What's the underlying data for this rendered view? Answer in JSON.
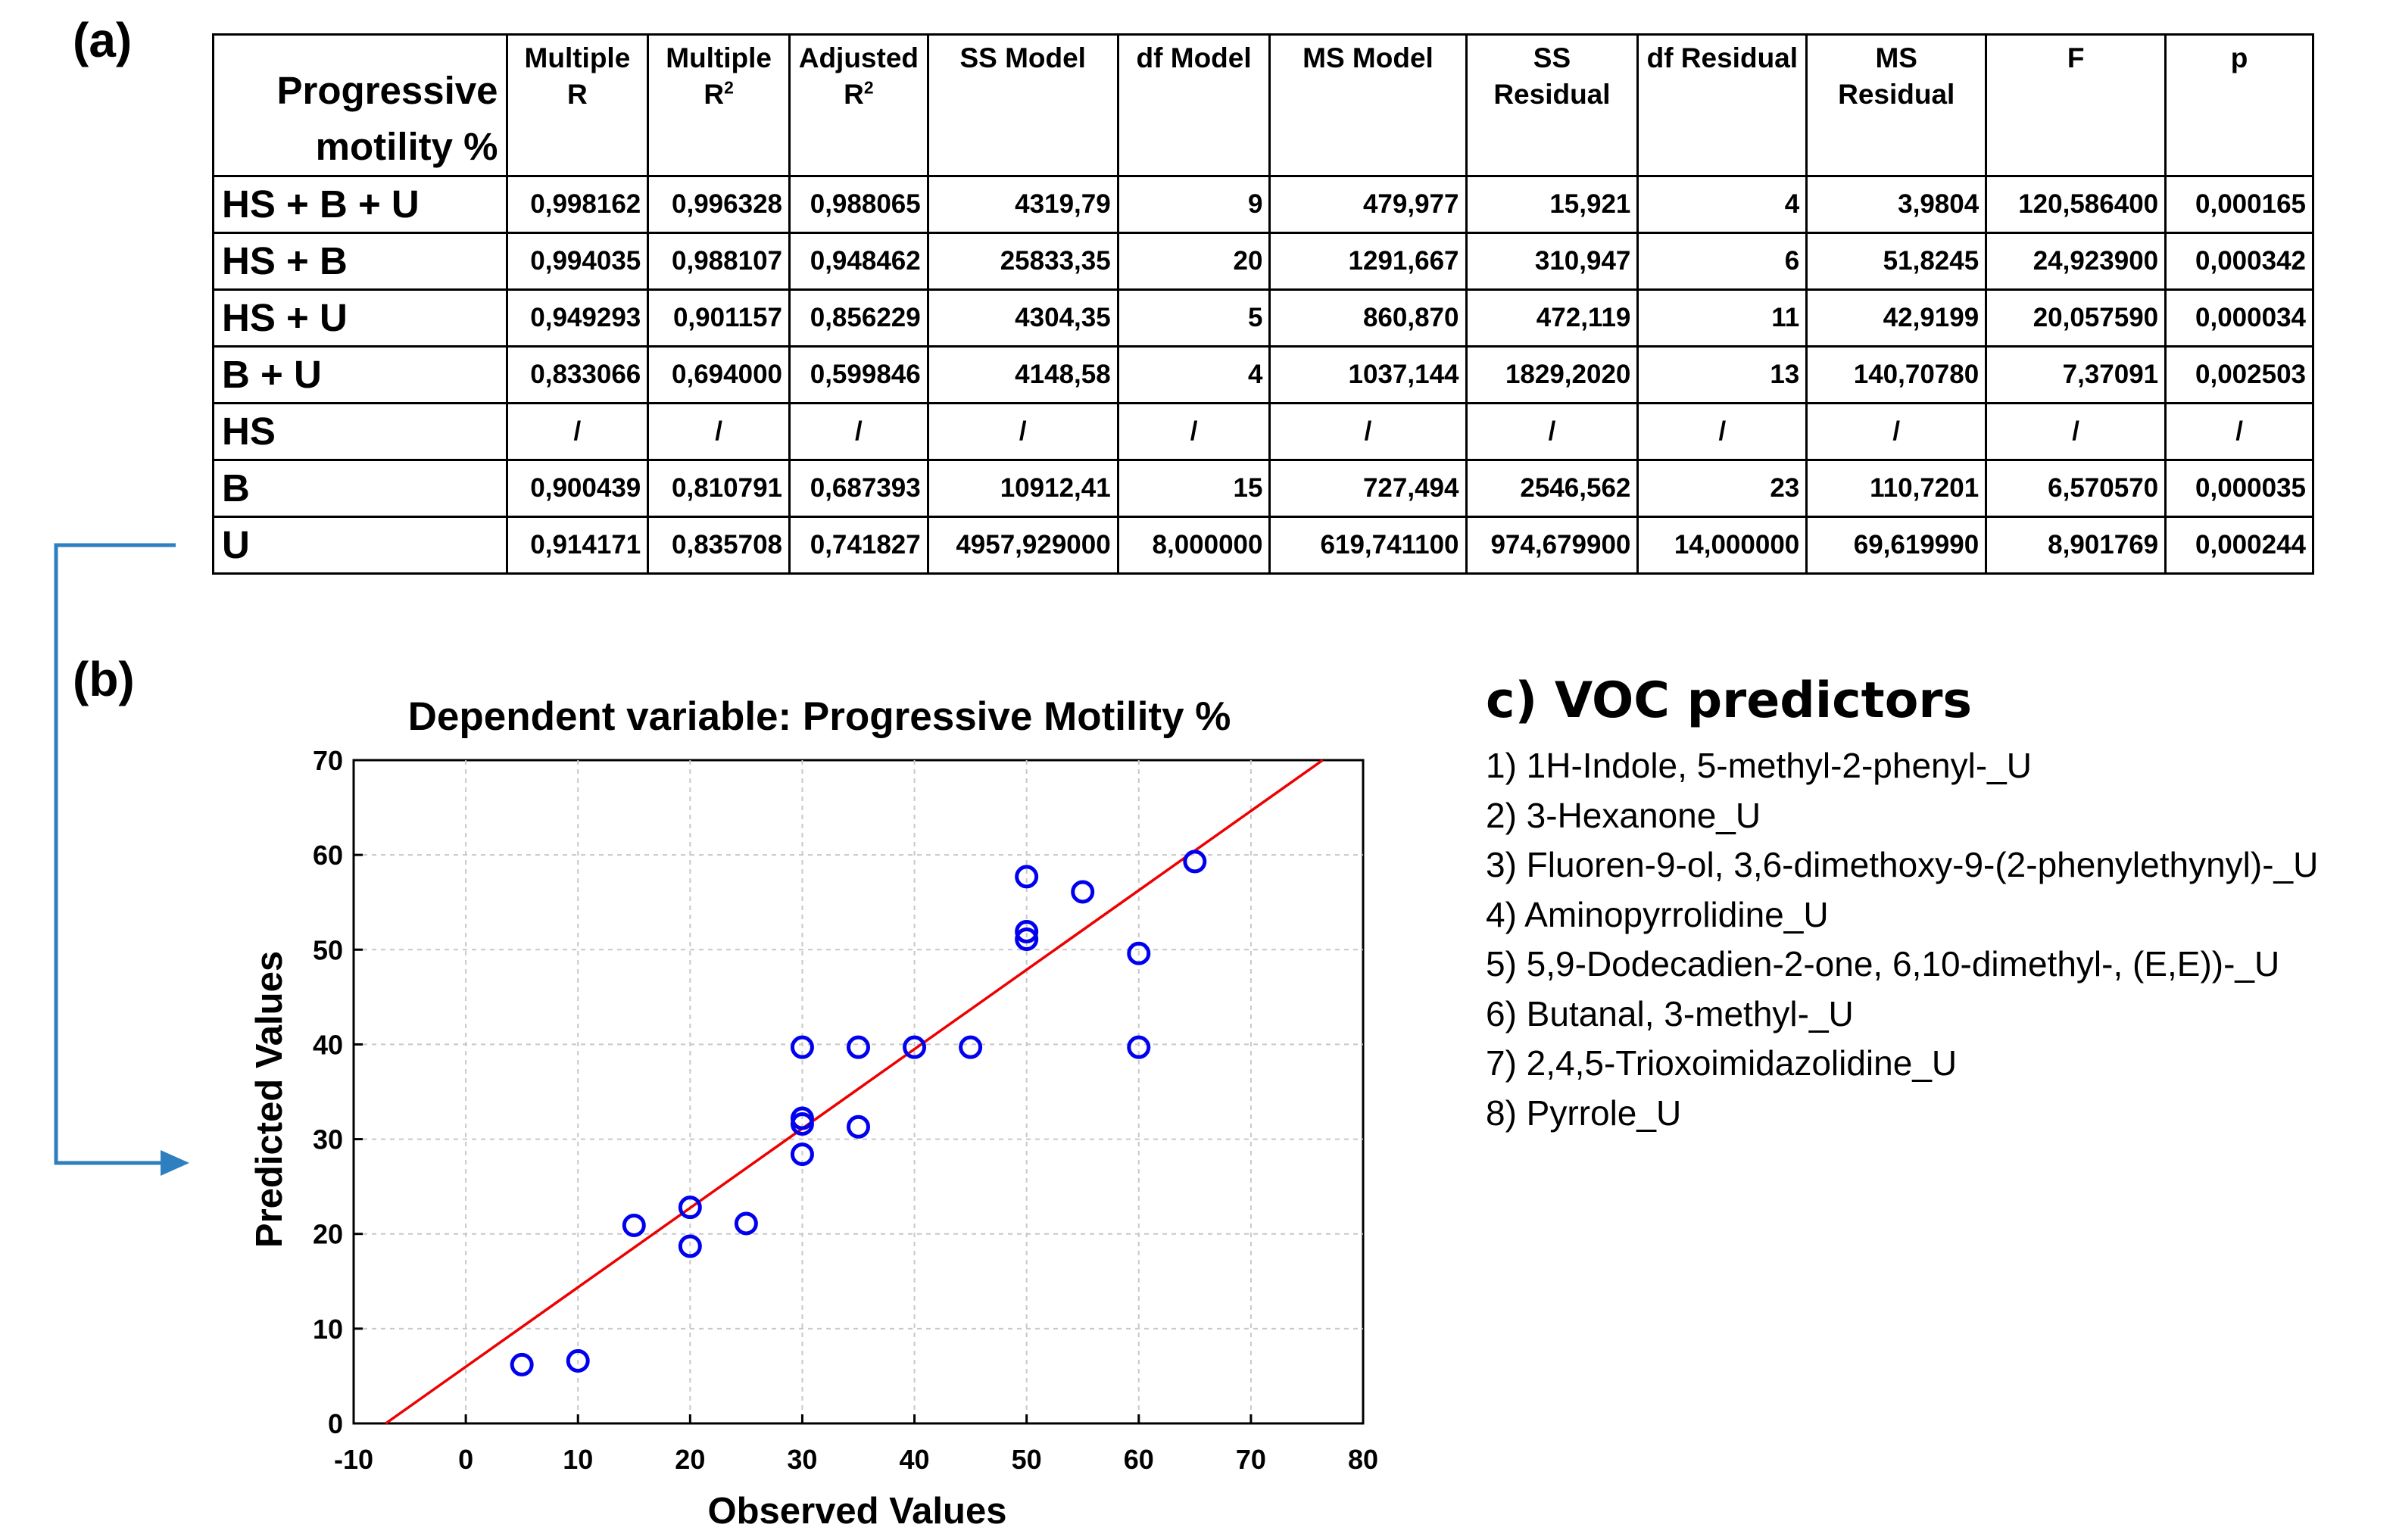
{
  "panel_labels": {
    "a": "(a)",
    "b": "(b)"
  },
  "table": {
    "corner_header": "Progressive motility %",
    "columns": [
      {
        "line1": "Multiple",
        "line2": "R",
        "sup": ""
      },
      {
        "line1": "Multiple",
        "line2": "R",
        "sup": "2"
      },
      {
        "line1": "Adjusted",
        "line2": "R",
        "sup": "2"
      },
      {
        "line1": "SS Model",
        "line2": "",
        "sup": ""
      },
      {
        "line1": "df Model",
        "line2": "",
        "sup": ""
      },
      {
        "line1": "MS Model",
        "line2": "",
        "sup": ""
      },
      {
        "line1": "SS",
        "line2": "Residual",
        "sup": ""
      },
      {
        "line1": "df Residual",
        "line2": "",
        "sup": ""
      },
      {
        "line1": "MS",
        "line2": "Residual",
        "sup": ""
      },
      {
        "line1": "F",
        "line2": "",
        "sup": ""
      },
      {
        "line1": "p",
        "line2": "",
        "sup": ""
      }
    ],
    "rows": [
      {
        "label": "HS + B + U",
        "cells": [
          "0,998162",
          "0,996328",
          "0,988065",
          "4319,79",
          "9",
          "479,977",
          "15,921",
          "4",
          "3,9804",
          "120,586400",
          "0,000165"
        ]
      },
      {
        "label": "HS + B",
        "cells": [
          "0,994035",
          "0,988107",
          "0,948462",
          "25833,35",
          "20",
          "1291,667",
          "310,947",
          "6",
          "51,8245",
          "24,923900",
          "0,000342"
        ]
      },
      {
        "label": "HS + U",
        "cells": [
          "0,949293",
          "0,901157",
          "0,856229",
          "4304,35",
          "5",
          "860,870",
          "472,119",
          "11",
          "42,9199",
          "20,057590",
          "0,000034"
        ]
      },
      {
        "label": "B + U",
        "cells": [
          "0,833066",
          "0,694000",
          "0,599846",
          "4148,58",
          "4",
          "1037,144",
          "1829,2020",
          "13",
          "140,70780",
          "7,37091",
          "0,002503"
        ]
      },
      {
        "label": "HS",
        "cells": [
          "/",
          "/",
          "/",
          "/",
          "/",
          "/",
          "/",
          "/",
          "/",
          "/",
          "/"
        ]
      },
      {
        "label": "B",
        "cells": [
          "0,900439",
          "0,810791",
          "0,687393",
          "10912,41",
          "15",
          "727,494",
          "2546,562",
          "23",
          "110,7201",
          "6,570570",
          "0,000035"
        ]
      },
      {
        "label": "U",
        "cells": [
          "0,914171",
          "0,835708",
          "0,741827",
          "4957,929000",
          "8,000000",
          "619,741100",
          "974,679900",
          "14,000000",
          "69,619990",
          "8,901769",
          "0,000244"
        ]
      }
    ]
  },
  "chart_data": {
    "type": "scatter",
    "title": "Dependent variable: Progressive Motility %",
    "xlabel": "Observed Values",
    "ylabel": "Predicted Values",
    "xlim": [
      -10,
      80
    ],
    "ylim": [
      0,
      70
    ],
    "xticks": [
      -10,
      0,
      10,
      20,
      30,
      40,
      50,
      60,
      70,
      80
    ],
    "yticks": [
      0,
      10,
      20,
      30,
      40,
      50,
      60,
      70
    ],
    "grid": true,
    "points": [
      {
        "x": 5,
        "y": 6.2
      },
      {
        "x": 10,
        "y": 6.6
      },
      {
        "x": 15,
        "y": 20.9
      },
      {
        "x": 20,
        "y": 22.8
      },
      {
        "x": 20,
        "y": 18.7
      },
      {
        "x": 25,
        "y": 21.1
      },
      {
        "x": 30,
        "y": 39.7
      },
      {
        "x": 30,
        "y": 32.2
      },
      {
        "x": 30,
        "y": 31.6
      },
      {
        "x": 30,
        "y": 28.4
      },
      {
        "x": 35,
        "y": 39.7
      },
      {
        "x": 35,
        "y": 31.3
      },
      {
        "x": 40,
        "y": 39.7
      },
      {
        "x": 45,
        "y": 39.7
      },
      {
        "x": 50,
        "y": 57.7
      },
      {
        "x": 50,
        "y": 51.9
      },
      {
        "x": 50,
        "y": 51.1
      },
      {
        "x": 55,
        "y": 56.1
      },
      {
        "x": 60,
        "y": 49.6
      },
      {
        "x": 60,
        "y": 39.7
      },
      {
        "x": 65,
        "y": 59.3
      }
    ],
    "fit_line": {
      "slope": 0.838,
      "intercept": 5.98
    },
    "point_color": "#0000ee",
    "line_color": "#ee0000"
  },
  "connector_color": "#2e7fbf",
  "voc": {
    "title": "c) VOC predictors",
    "items": [
      "1) 1H-Indole, 5-methyl-2-phenyl-_U",
      "2) 3-Hexanone_U",
      "3) Fluoren-9-ol, 3,6-dimethoxy-9-(2-phenylethynyl)-_U",
      "4) Aminopyrrolidine_U",
      "5) 5,9-Dodecadien-2-one, 6,10-dimethyl-, (E,E))-_U",
      "6) Butanal, 3-methyl-_U",
      "7) 2,4,5-Trioxoimidazolidine_U",
      "8) Pyrrole_U"
    ]
  }
}
